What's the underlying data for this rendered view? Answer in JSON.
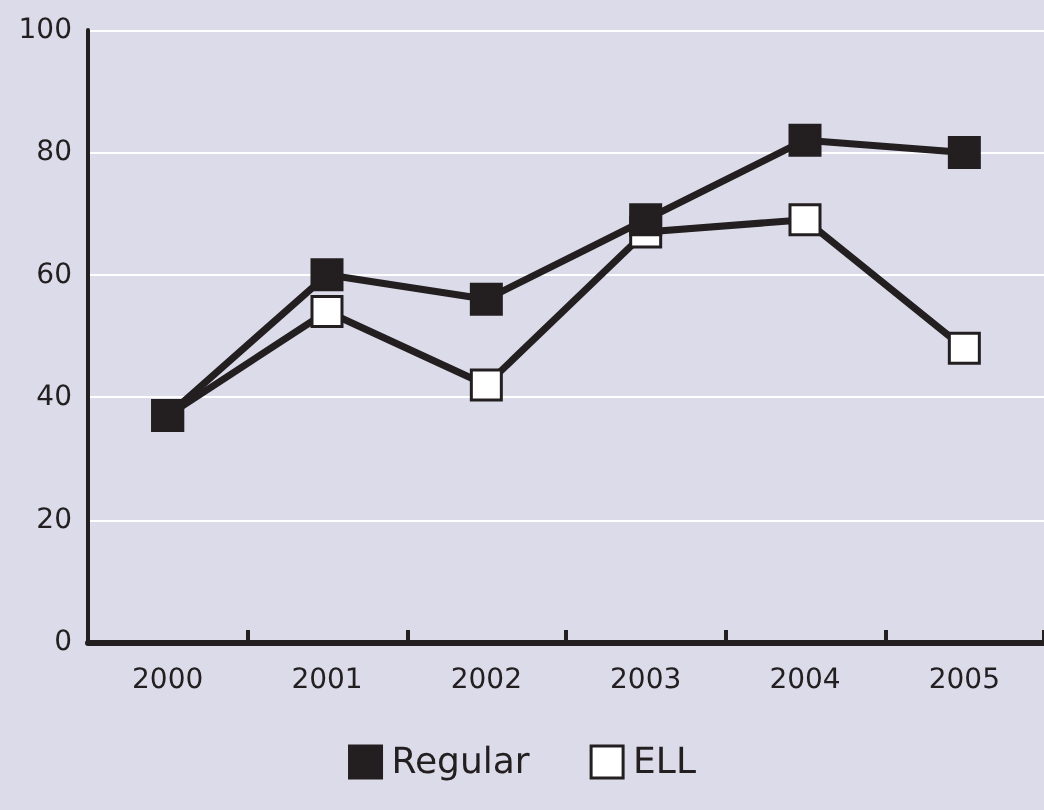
{
  "chart_data": {
    "type": "line",
    "categories": [
      "2000",
      "2001",
      "2002",
      "2003",
      "2004",
      "2005"
    ],
    "series": [
      {
        "name": "Regular",
        "color": "#231f20",
        "values": [
          37,
          60,
          56,
          69,
          82,
          80
        ]
      },
      {
        "name": "ELL",
        "color": "#ffffff",
        "values": [
          37,
          54,
          42,
          67,
          69,
          48
        ]
      }
    ],
    "ylim": [
      0,
      100
    ],
    "yticks": [
      0,
      20,
      40,
      60,
      80,
      100
    ],
    "grid": "y",
    "legend": "bottom",
    "marker": "square",
    "line_style": "solid"
  }
}
